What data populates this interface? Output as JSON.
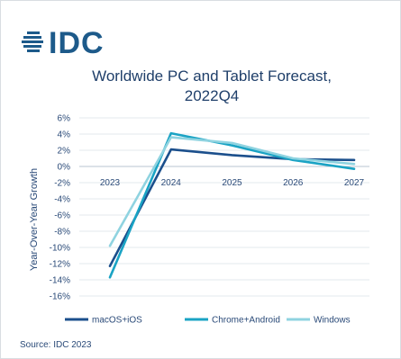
{
  "logo": {
    "text": "IDC",
    "icon": "idc-globe-logo",
    "color": "#1d5a8a"
  },
  "chart_data": {
    "type": "line",
    "title": "Worldwide PC and Tablet Forecast,",
    "subtitle": "2022Q4",
    "ylabel": "Year-Over-Year Growth",
    "xlabel": "",
    "x": [
      "2023",
      "2024",
      "2025",
      "2026",
      "2027"
    ],
    "ylim": [
      -16,
      6
    ],
    "yticks": [
      6,
      4,
      2,
      0,
      -2,
      -4,
      -6,
      -8,
      -10,
      -12,
      -14,
      -16
    ],
    "ytick_labels": [
      "6%",
      "4%",
      "2%",
      "0%",
      "-2%",
      "-4%",
      "-6%",
      "-8%",
      "-10%",
      "-12%",
      "-14%",
      "-16%"
    ],
    "grid": true,
    "legend_position": "bottom",
    "series": [
      {
        "name": "macOS+iOS",
        "values": [
          -12.3,
          2.1,
          1.4,
          0.9,
          0.8
        ],
        "color": "#1b4f8c"
      },
      {
        "name": "Chrome+Android",
        "values": [
          -13.7,
          4.1,
          2.6,
          0.8,
          -0.3
        ],
        "color": "#1aa3c4"
      },
      {
        "name": "Windows",
        "values": [
          -9.8,
          3.6,
          2.9,
          1.0,
          0.3
        ],
        "color": "#8fd3e0"
      }
    ]
  },
  "source": "Source: IDC 2023"
}
